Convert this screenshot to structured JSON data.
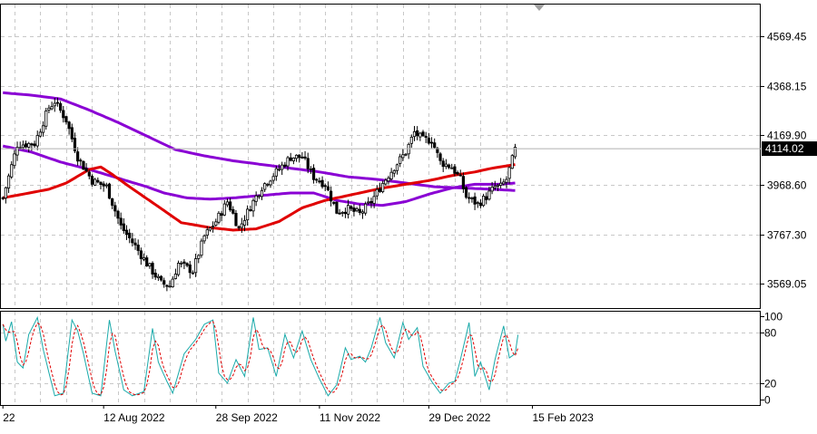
{
  "chart_data": [
    {
      "type": "candlestick",
      "ylim": [
        3470,
        4700
      ],
      "y_ticks": [
        "4569.45",
        "4368.15",
        "4169.90",
        "3968.60",
        "3767.30",
        "3569.05"
      ],
      "y_tick_values": [
        4569.45,
        4368.15,
        4169.9,
        3968.6,
        3767.3,
        3569.05
      ],
      "last_price_label": "4114.02",
      "last_price": 4114.02,
      "x_ticks": [
        "22",
        "12 Aug 2022",
        "28 Sep 2022",
        "11 Nov 2022",
        "29 Dec 2022",
        "15 Feb 2023"
      ],
      "x_tick_slots": [
        0,
        35,
        74,
        110,
        148,
        184
      ],
      "grid": true,
      "colors": {
        "candle": "#000000",
        "ma_fast": "#e00000",
        "ma_slow": "#8a00d4",
        "ma_mid": "#8a00d4",
        "grid": "#c8c8c8"
      },
      "close_key": [
        [
          0,
          3915
        ],
        [
          5,
          4130
        ],
        [
          11,
          4135
        ],
        [
          16,
          4280
        ],
        [
          18,
          4305
        ],
        [
          22,
          4230
        ],
        [
          26,
          4080
        ],
        [
          31,
          3985
        ],
        [
          36,
          3960
        ],
        [
          41,
          3800
        ],
        [
          46,
          3720
        ],
        [
          50,
          3650
        ],
        [
          55,
          3570
        ],
        [
          58,
          3560
        ],
        [
          61,
          3650
        ],
        [
          66,
          3620
        ],
        [
          70,
          3760
        ],
        [
          74,
          3820
        ],
        [
          78,
          3900
        ],
        [
          80,
          3850
        ],
        [
          82,
          3790
        ],
        [
          86,
          3880
        ],
        [
          90,
          3960
        ],
        [
          95,
          4020
        ],
        [
          100,
          4080
        ],
        [
          104,
          4080
        ],
        [
          108,
          4000
        ],
        [
          112,
          3970
        ],
        [
          116,
          3860
        ],
        [
          120,
          3870
        ],
        [
          124,
          3850
        ],
        [
          128,
          3900
        ],
        [
          132,
          3975
        ],
        [
          136,
          4040
        ],
        [
          140,
          4100
        ],
        [
          143,
          4180
        ],
        [
          146,
          4150
        ],
        [
          149,
          4150
        ],
        [
          152,
          4060
        ],
        [
          156,
          4040
        ],
        [
          159,
          3990
        ],
        [
          161,
          3920
        ],
        [
          165,
          3890
        ],
        [
          168,
          3920
        ],
        [
          171,
          3960
        ],
        [
          173,
          3960
        ],
        [
          175,
          3990
        ],
        [
          178,
          4110
        ]
      ],
      "ma_fast": [
        [
          0,
          3915
        ],
        [
          16,
          3950
        ],
        [
          22,
          3975
        ],
        [
          30,
          4030
        ],
        [
          34,
          4040
        ],
        [
          38,
          4010
        ],
        [
          44,
          3960
        ],
        [
          54,
          3880
        ],
        [
          62,
          3815
        ],
        [
          72,
          3795
        ],
        [
          80,
          3785
        ],
        [
          88,
          3790
        ],
        [
          96,
          3820
        ],
        [
          104,
          3875
        ],
        [
          112,
          3905
        ],
        [
          120,
          3925
        ],
        [
          132,
          3955
        ],
        [
          140,
          3970
        ],
        [
          148,
          3985
        ],
        [
          156,
          4005
        ],
        [
          164,
          4020
        ],
        [
          170,
          4035
        ],
        [
          178,
          4050
        ]
      ],
      "ma_slow": [
        [
          0,
          4340
        ],
        [
          10,
          4330
        ],
        [
          20,
          4315
        ],
        [
          30,
          4270
        ],
        [
          40,
          4220
        ],
        [
          50,
          4165
        ],
        [
          60,
          4110
        ],
        [
          70,
          4085
        ],
        [
          80,
          4065
        ],
        [
          90,
          4050
        ],
        [
          100,
          4035
        ],
        [
          110,
          4020
        ],
        [
          120,
          4000
        ],
        [
          130,
          3990
        ],
        [
          140,
          3975
        ],
        [
          150,
          3960
        ],
        [
          160,
          3955
        ],
        [
          170,
          3950
        ],
        [
          178,
          3945
        ]
      ],
      "ma_mid": [
        [
          0,
          4125
        ],
        [
          10,
          4100
        ],
        [
          20,
          4060
        ],
        [
          30,
          4030
        ],
        [
          40,
          3995
        ],
        [
          50,
          3960
        ],
        [
          56,
          3935
        ],
        [
          64,
          3915
        ],
        [
          72,
          3910
        ],
        [
          80,
          3915
        ],
        [
          90,
          3925
        ],
        [
          100,
          3935
        ],
        [
          108,
          3935
        ],
        [
          116,
          3905
        ],
        [
          124,
          3890
        ],
        [
          132,
          3885
        ],
        [
          140,
          3900
        ],
        [
          148,
          3930
        ],
        [
          156,
          3955
        ],
        [
          164,
          3970
        ],
        [
          172,
          3970
        ],
        [
          178,
          3975
        ]
      ]
    },
    {
      "type": "line",
      "indicator": "oscillator",
      "ylim": [
        -6,
        106
      ],
      "y_ticks": [
        "100",
        "80",
        "20",
        "0"
      ],
      "y_tick_values": [
        100,
        80,
        20,
        0
      ],
      "colors": {
        "main": "#1aaaaa",
        "signal": "#e00000"
      },
      "main_key": [
        [
          0,
          90
        ],
        [
          1,
          70
        ],
        [
          3,
          93
        ],
        [
          5,
          45
        ],
        [
          7,
          38
        ],
        [
          9,
          78
        ],
        [
          12,
          98
        ],
        [
          14,
          60
        ],
        [
          18,
          5
        ],
        [
          21,
          8
        ],
        [
          24,
          95
        ],
        [
          26,
          82
        ],
        [
          28,
          55
        ],
        [
          31,
          8
        ],
        [
          34,
          5
        ],
        [
          37,
          95
        ],
        [
          39,
          58
        ],
        [
          42,
          12
        ],
        [
          45,
          5
        ],
        [
          49,
          10
        ],
        [
          52,
          85
        ],
        [
          54,
          45
        ],
        [
          57,
          22
        ],
        [
          59,
          8
        ],
        [
          63,
          55
        ],
        [
          67,
          72
        ],
        [
          70,
          90
        ],
        [
          73,
          95
        ],
        [
          75,
          32
        ],
        [
          78,
          20
        ],
        [
          81,
          48
        ],
        [
          84,
          28
        ],
        [
          87,
          98
        ],
        [
          89,
          60
        ],
        [
          92,
          62
        ],
        [
          95,
          28
        ],
        [
          98,
          78
        ],
        [
          101,
          50
        ],
        [
          104,
          82
        ],
        [
          107,
          48
        ],
        [
          110,
          25
        ],
        [
          113,
          5
        ],
        [
          116,
          18
        ],
        [
          119,
          62
        ],
        [
          121,
          48
        ],
        [
          124,
          52
        ],
        [
          126,
          45
        ],
        [
          128,
          62
        ],
        [
          131,
          98
        ],
        [
          133,
          68
        ],
        [
          136,
          50
        ],
        [
          139,
          92
        ],
        [
          141,
          72
        ],
        [
          144,
          86
        ],
        [
          146,
          40
        ],
        [
          149,
          22
        ],
        [
          152,
          8
        ],
        [
          155,
          20
        ],
        [
          157,
          22
        ],
        [
          159,
          48
        ],
        [
          162,
          92
        ],
        [
          164,
          28
        ],
        [
          166,
          45
        ],
        [
          169,
          12
        ],
        [
          171,
          48
        ],
        [
          174,
          88
        ],
        [
          176,
          50
        ],
        [
          178,
          55
        ],
        [
          180,
          100
        ]
      ]
    }
  ]
}
